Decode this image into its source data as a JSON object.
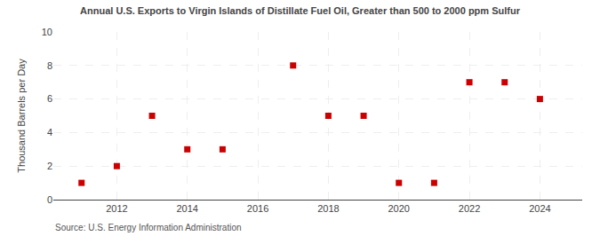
{
  "chart_data": {
    "type": "scatter",
    "title": "Annual U.S. Exports to Virgin Islands of Distillate Fuel Oil, Greater than 500 to 2000 ppm Sulfur",
    "y_label": "Thousand Barrels per Day",
    "annotations": [
      "Source: U.S. Energy Information Administration"
    ],
    "x": [
      2011,
      2012,
      2013,
      2014,
      2015,
      2017,
      2018,
      2019,
      2020,
      2021,
      2022,
      2023,
      2024
    ],
    "values": [
      1,
      2,
      5,
      3,
      3,
      8,
      5,
      5,
      1,
      1,
      7,
      7,
      6
    ],
    "color": "#cc0000",
    "marker": "square",
    "xlim": [
      2010.2,
      2025.2
    ],
    "xticks": [
      2012,
      2014,
      2016,
      2018,
      2020,
      2022,
      2024
    ],
    "ylim": [
      0,
      10
    ],
    "yticks": [
      0,
      2,
      4,
      6,
      8,
      10
    ],
    "grid": true
  }
}
